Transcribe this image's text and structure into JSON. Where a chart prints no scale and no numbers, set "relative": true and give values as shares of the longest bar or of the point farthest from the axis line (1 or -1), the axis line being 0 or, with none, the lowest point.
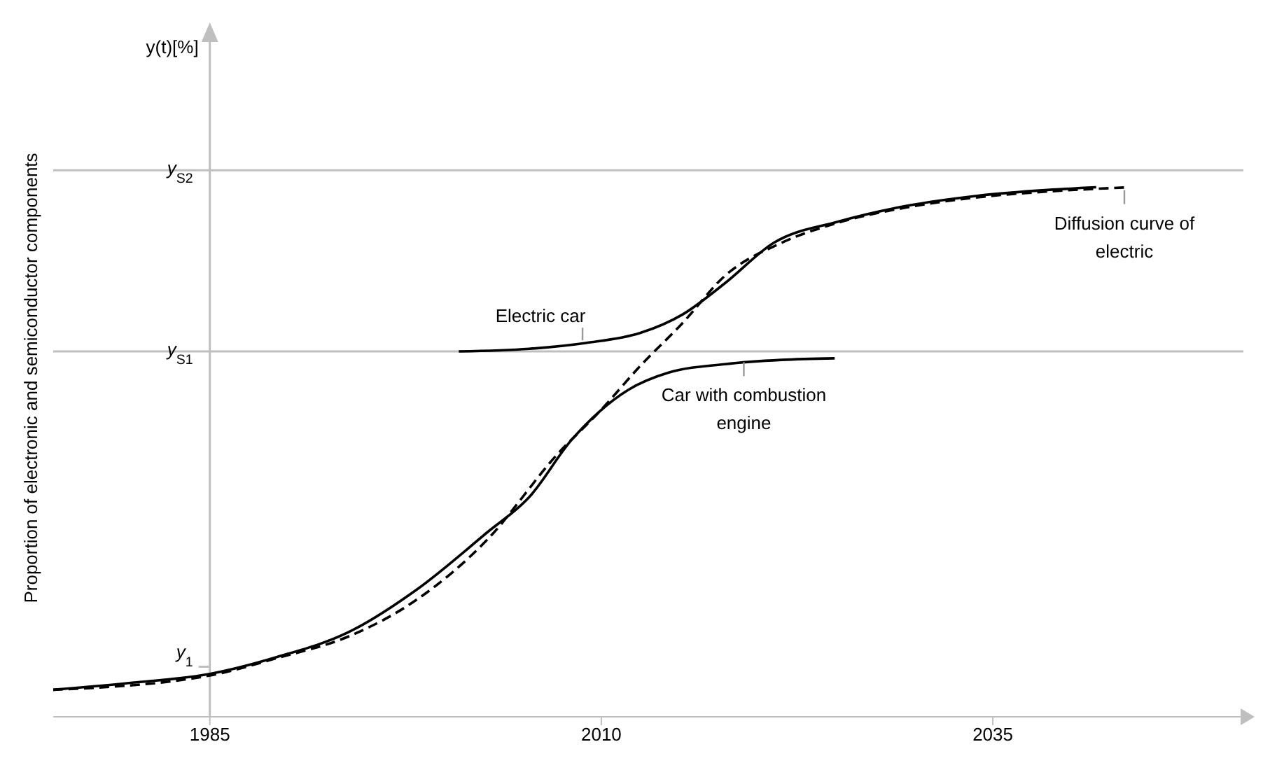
{
  "chart_data": {
    "type": "line",
    "relative": true,
    "ylabel": "Proportion of electronic and semiconductor components",
    "xlim": [
      1975,
      2051
    ],
    "xticks": [
      1985,
      2010,
      2035
    ],
    "marker": "none",
    "series": [
      {
        "color": "#000000",
        "line_style": "solid",
        "x": [
          1975.0,
          1980.3,
          1985,
          1989.3,
          1993.8,
          1998.2,
          2002.7,
          2005.4,
          2008.1,
          2009.9,
          2011.7,
          2014.3,
          2017.9,
          2021.5,
          2024.9
        ],
        "values": [
          0.051,
          0.065,
          0.081,
          0.113,
          0.159,
          0.24,
          0.348,
          0.415,
          0.523,
          0.577,
          0.617,
          0.65,
          0.666,
          0.674,
          0.677
        ]
      },
      {
        "color": "#000000",
        "line_style": "solid",
        "x": [
          2000.9,
          2005.4,
          2009.0,
          2012.5,
          2015.2,
          2017.9,
          2021.0,
          2025.1,
          2029.5,
          2034.0,
          2038.5,
          2041.6
        ],
        "values": [
          0.69,
          0.695,
          0.706,
          0.725,
          0.76,
          0.819,
          0.895,
          0.935,
          0.965,
          0.984,
          0.995,
          1.0
        ]
      },
      {
        "color": "#000000",
        "line_style": "dashed",
        "x": [
          1975.0,
          1985,
          1989.3,
          1993.8,
          1998.2,
          2002.7,
          2007.2,
          2009.9,
          2012.5,
          2015.2,
          2017.9,
          2021.5,
          2025.1,
          2029.5,
          2034.0,
          2038.5,
          2043.7
        ],
        "values": [
          0.051,
          0.078,
          0.111,
          0.151,
          0.221,
          0.334,
          0.496,
          0.577,
          0.663,
          0.744,
          0.833,
          0.895,
          0.933,
          0.962,
          0.981,
          0.992,
          1.0
        ]
      }
    ],
    "ref_lines": [
      {
        "axis": "y",
        "value": 1.032,
        "label": "y$_{S2}$",
        "color": "#bfbfbf"
      },
      {
        "axis": "y",
        "value": 0.69,
        "label": "y$_{S1}$",
        "color": "#bfbfbf"
      },
      {
        "axis": "x",
        "value": 1985,
        "label": null,
        "color": "#bfbfbf"
      }
    ],
    "annotations": [
      "y(t)[%]",
      {
        "text": "y$_{1}$",
        "x": 1985,
        "y": 0.084
      },
      {
        "text": "Electric car",
        "x": 2008.8,
        "y": 0.703
      },
      {
        "text": "Car with combustion engine",
        "x": 2019.1,
        "y": 0.675
      },
      {
        "text": "Diffusion curve of electric",
        "x": 2043.4,
        "y": 1.0
      }
    ]
  }
}
